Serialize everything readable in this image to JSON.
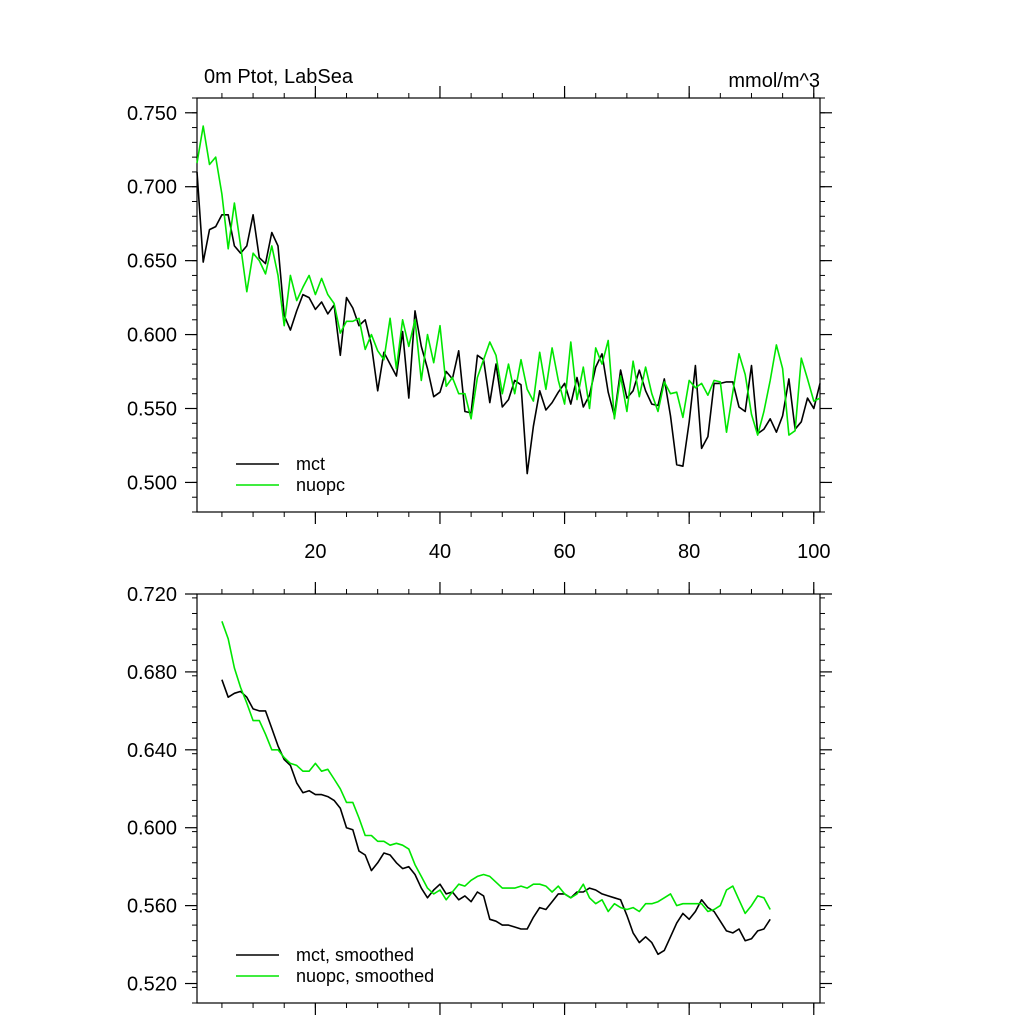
{
  "colors": {
    "mct": "#000000",
    "nuopc": "#00e600",
    "axis": "#000000",
    "background": "#ffffff"
  },
  "chart_data": [
    {
      "type": "line",
      "title_left": "0m Ptot, LabSea",
      "title_right": "mmol/m^3",
      "xlim": [
        1,
        101
      ],
      "ylim": [
        0.48,
        0.76
      ],
      "xticks": [
        20,
        40,
        60,
        80,
        100
      ],
      "xtick_labels": [
        "20",
        "40",
        "60",
        "80",
        "100"
      ],
      "yticks": [
        0.5,
        0.55,
        0.6,
        0.65,
        0.7,
        0.75
      ],
      "ytick_labels": [
        "0.500",
        "0.550",
        "0.600",
        "0.650",
        "0.700",
        "0.750"
      ],
      "legend_location": "bottom-left",
      "series": [
        {
          "name": "mct",
          "x_start": 1,
          "values": [
            0.71,
            0.649,
            0.671,
            0.673,
            0.681,
            0.681,
            0.66,
            0.655,
            0.66,
            0.681,
            0.652,
            0.648,
            0.669,
            0.66,
            0.613,
            0.603,
            0.616,
            0.627,
            0.625,
            0.617,
            0.622,
            0.614,
            0.62,
            0.586,
            0.625,
            0.618,
            0.606,
            0.61,
            0.593,
            0.562,
            0.588,
            0.58,
            0.572,
            0.602,
            0.557,
            0.616,
            0.592,
            0.577,
            0.558,
            0.561,
            0.575,
            0.57,
            0.589,
            0.548,
            0.547,
            0.586,
            0.583,
            0.554,
            0.58,
            0.551,
            0.556,
            0.569,
            0.566,
            0.506,
            0.538,
            0.562,
            0.549,
            0.554,
            0.561,
            0.567,
            0.553,
            0.571,
            0.551,
            0.559,
            0.578,
            0.587,
            0.561,
            0.545,
            0.576,
            0.557,
            0.562,
            0.576,
            0.562,
            0.553,
            0.552,
            0.57,
            0.545,
            0.512,
            0.511,
            0.541,
            0.579,
            0.523,
            0.531,
            0.567,
            0.567,
            0.568,
            0.568,
            0.551,
            0.548,
            0.579,
            0.533,
            0.536,
            0.543,
            0.534,
            0.545,
            0.57,
            0.536,
            0.541,
            0.557,
            0.55,
            0.567
          ]
        },
        {
          "name": "nuopc",
          "x_start": 1,
          "values": [
            0.716,
            0.741,
            0.715,
            0.72,
            0.695,
            0.658,
            0.689,
            0.66,
            0.629,
            0.655,
            0.65,
            0.641,
            0.66,
            0.64,
            0.606,
            0.64,
            0.623,
            0.632,
            0.64,
            0.627,
            0.638,
            0.627,
            0.621,
            0.601,
            0.609,
            0.609,
            0.611,
            0.59,
            0.6,
            0.589,
            0.583,
            0.611,
            0.577,
            0.61,
            0.592,
            0.61,
            0.569,
            0.6,
            0.581,
            0.606,
            0.565,
            0.571,
            0.56,
            0.56,
            0.543,
            0.571,
            0.583,
            0.595,
            0.586,
            0.56,
            0.58,
            0.56,
            0.583,
            0.563,
            0.555,
            0.588,
            0.563,
            0.591,
            0.569,
            0.553,
            0.595,
            0.556,
            0.578,
            0.55,
            0.591,
            0.58,
            0.596,
            0.543,
            0.572,
            0.548,
            0.582,
            0.558,
            0.578,
            0.56,
            0.548,
            0.568,
            0.56,
            0.561,
            0.544,
            0.569,
            0.564,
            0.567,
            0.559,
            0.569,
            0.568,
            0.534,
            0.561,
            0.587,
            0.573,
            0.546,
            0.532,
            0.548,
            0.569,
            0.593,
            0.577,
            0.532,
            0.535,
            0.584,
            0.57,
            0.555,
            0.557
          ]
        }
      ]
    },
    {
      "type": "line",
      "xlim": [
        1,
        101
      ],
      "ylim": [
        0.51,
        0.72
      ],
      "xticks": [
        20,
        40,
        60,
        80,
        100
      ],
      "xtick_labels": [],
      "yticks": [
        0.52,
        0.56,
        0.6,
        0.64,
        0.68,
        0.72
      ],
      "ytick_labels": [
        "0.520",
        "0.560",
        "0.600",
        "0.640",
        "0.680",
        "0.720"
      ],
      "legend_location": "bottom-left",
      "series": [
        {
          "name": "mct, smoothed",
          "x_start": 5,
          "values": [
            0.676,
            0.667,
            0.669,
            0.67,
            0.667,
            0.661,
            0.66,
            0.66,
            0.651,
            0.642,
            0.635,
            0.632,
            0.623,
            0.618,
            0.619,
            0.617,
            0.617,
            0.616,
            0.614,
            0.61,
            0.6,
            0.599,
            0.588,
            0.586,
            0.578,
            0.582,
            0.587,
            0.586,
            0.582,
            0.579,
            0.58,
            0.576,
            0.569,
            0.564,
            0.568,
            0.571,
            0.566,
            0.567,
            0.563,
            0.565,
            0.562,
            0.567,
            0.565,
            0.553,
            0.552,
            0.55,
            0.55,
            0.549,
            0.548,
            0.548,
            0.554,
            0.559,
            0.558,
            0.562,
            0.566,
            0.566,
            0.564,
            0.567,
            0.567,
            0.569,
            0.568,
            0.566,
            0.565,
            0.564,
            0.563,
            0.555,
            0.546,
            0.541,
            0.544,
            0.541,
            0.535,
            0.537,
            0.544,
            0.551,
            0.556,
            0.553,
            0.557,
            0.563,
            0.559,
            0.557,
            0.552,
            0.547,
            0.546,
            0.548,
            0.542,
            0.543,
            0.547,
            0.548,
            0.553
          ]
        },
        {
          "name": "nuopc, smoothed",
          "x_start": 5,
          "values": [
            0.706,
            0.697,
            0.682,
            0.672,
            0.664,
            0.655,
            0.655,
            0.648,
            0.64,
            0.64,
            0.636,
            0.633,
            0.632,
            0.629,
            0.629,
            0.633,
            0.629,
            0.63,
            0.625,
            0.62,
            0.613,
            0.613,
            0.605,
            0.596,
            0.596,
            0.593,
            0.593,
            0.591,
            0.592,
            0.591,
            0.589,
            0.581,
            0.575,
            0.569,
            0.566,
            0.568,
            0.563,
            0.567,
            0.571,
            0.57,
            0.573,
            0.575,
            0.576,
            0.575,
            0.572,
            0.569,
            0.569,
            0.569,
            0.57,
            0.569,
            0.571,
            0.571,
            0.57,
            0.567,
            0.57,
            0.566,
            0.564,
            0.566,
            0.571,
            0.564,
            0.561,
            0.563,
            0.557,
            0.561,
            0.559,
            0.558,
            0.559,
            0.557,
            0.561,
            0.561,
            0.562,
            0.564,
            0.566,
            0.56,
            0.561,
            0.561,
            0.561,
            0.561,
            0.557,
            0.558,
            0.56,
            0.568,
            0.57,
            0.563,
            0.556,
            0.56,
            0.565,
            0.564,
            0.558
          ]
        }
      ]
    }
  ]
}
